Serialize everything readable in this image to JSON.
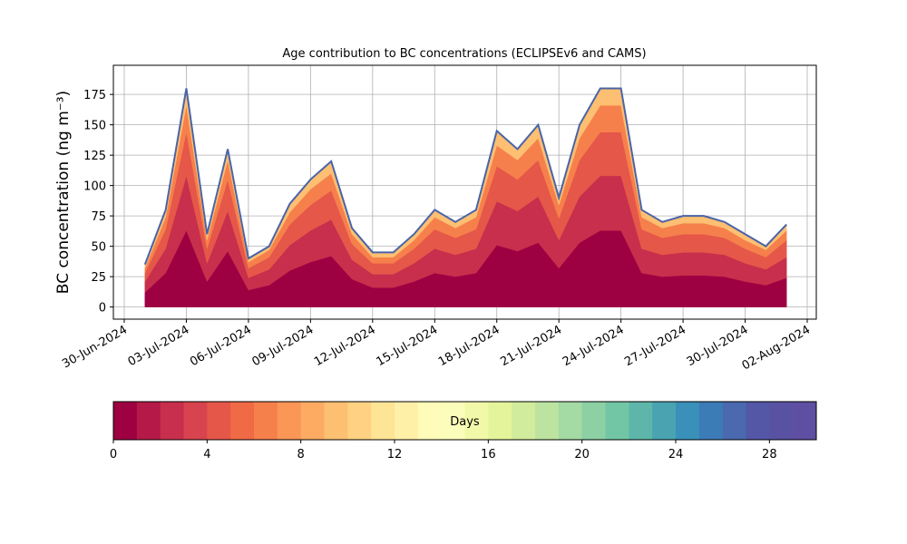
{
  "chart_data": {
    "type": "stackedarea",
    "title": "Age contribution to BC concentrations (ECLIPSEv6 and CAMS)",
    "ylabel": "BC concentration (ng m⁻³)",
    "x": [
      "01-Jul-2024",
      "02-Jul-2024",
      "03-Jul-2024",
      "04-Jul-2024",
      "05-Jul-2024",
      "06-Jul-2024",
      "07-Jul-2024",
      "08-Jul-2024",
      "09-Jul-2024",
      "10-Jul-2024",
      "11-Jul-2024",
      "12-Jul-2024",
      "13-Jul-2024",
      "14-Jul-2024",
      "15-Jul-2024",
      "16-Jul-2024",
      "17-Jul-2024",
      "18-Jul-2024",
      "19-Jul-2024",
      "20-Jul-2024",
      "21-Jul-2024",
      "22-Jul-2024",
      "23-Jul-2024",
      "24-Jul-2024",
      "25-Jul-2024",
      "26-Jul-2024",
      "27-Jul-2024",
      "28-Jul-2024",
      "29-Jul-2024",
      "30-Jul-2024",
      "31-Jul-2024",
      "01-Aug-2024"
    ],
    "series": [
      {
        "color": "#9e0142",
        "values": [
          12,
          28,
          63,
          21,
          46,
          14,
          18,
          30,
          37,
          42,
          23,
          16,
          16,
          21,
          28,
          25,
          28,
          51,
          46,
          53,
          32,
          53,
          63,
          63,
          28,
          25,
          26,
          26,
          25,
          21,
          18,
          24
        ]
      },
      {
        "color": "#c72f4c",
        "values": [
          9,
          20,
          45,
          15,
          33,
          10,
          13,
          21,
          26,
          30,
          16,
          11,
          11,
          15,
          20,
          18,
          20,
          36,
          33,
          38,
          23,
          38,
          45,
          45,
          20,
          18,
          19,
          19,
          18,
          15,
          13,
          17
        ]
      },
      {
        "color": "#e55749",
        "values": [
          7,
          16,
          36,
          12,
          26,
          8,
          10,
          17,
          21,
          24,
          13,
          9,
          9,
          12,
          16,
          14,
          16,
          29,
          26,
          30,
          18,
          30,
          36,
          36,
          16,
          14,
          15,
          15,
          14,
          12,
          10,
          14
        ]
      },
      {
        "color": "#f6804c",
        "values": [
          4,
          10,
          22,
          7,
          16,
          5,
          6,
          10,
          13,
          14,
          8,
          5,
          5,
          7,
          10,
          8,
          10,
          17,
          16,
          18,
          11,
          18,
          22,
          22,
          10,
          8,
          9,
          9,
          8,
          7,
          6,
          8
        ]
      },
      {
        "color": "#fdbf71",
        "values": [
          3,
          6,
          14,
          5,
          9,
          3,
          3,
          7,
          8,
          10,
          5,
          4,
          4,
          5,
          6,
          5,
          6,
          12,
          9,
          11,
          6,
          11,
          14,
          14,
          6,
          5,
          6,
          6,
          5,
          5,
          3,
          5
        ]
      }
    ],
    "outline_color": "#4a64a8",
    "xlim": [
      "30-Jun-2024",
      "02-Aug-2024"
    ],
    "xticks": [
      "30-Jun-2024",
      "03-Jul-2024",
      "06-Jul-2024",
      "09-Jul-2024",
      "12-Jul-2024",
      "15-Jul-2024",
      "18-Jul-2024",
      "21-Jul-2024",
      "24-Jul-2024",
      "27-Jul-2024",
      "30-Jul-2024",
      "02-Aug-2024"
    ],
    "ylim": [
      -10,
      199
    ],
    "yticks": [
      0,
      25,
      50,
      75,
      100,
      125,
      150,
      175
    ],
    "grid": true,
    "colorbar": {
      "label": "Days",
      "lim": [
        0,
        30
      ],
      "ticks": [
        0,
        4,
        8,
        12,
        16,
        20,
        24,
        28
      ],
      "colors": [
        "#9e0142",
        "#b41947",
        "#c72f4c",
        "#d7434e",
        "#e55749",
        "#ef6a45",
        "#f6804c",
        "#fa9656",
        "#fdab63",
        "#fdbf71",
        "#fed282",
        "#fee495",
        "#fff0a8",
        "#fffbb9",
        "#fbfdba",
        "#f1f9a9",
        "#e4f49b",
        "#d1ec9c",
        "#bce4a0",
        "#a4daa4",
        "#8cd0a4",
        "#72c6a5",
        "#5db6a9",
        "#4aa3b1",
        "#3990b9",
        "#3c7cb6",
        "#4a69ae",
        "#5456a6",
        "#5952a3",
        "#5e4fa2"
      ]
    }
  }
}
